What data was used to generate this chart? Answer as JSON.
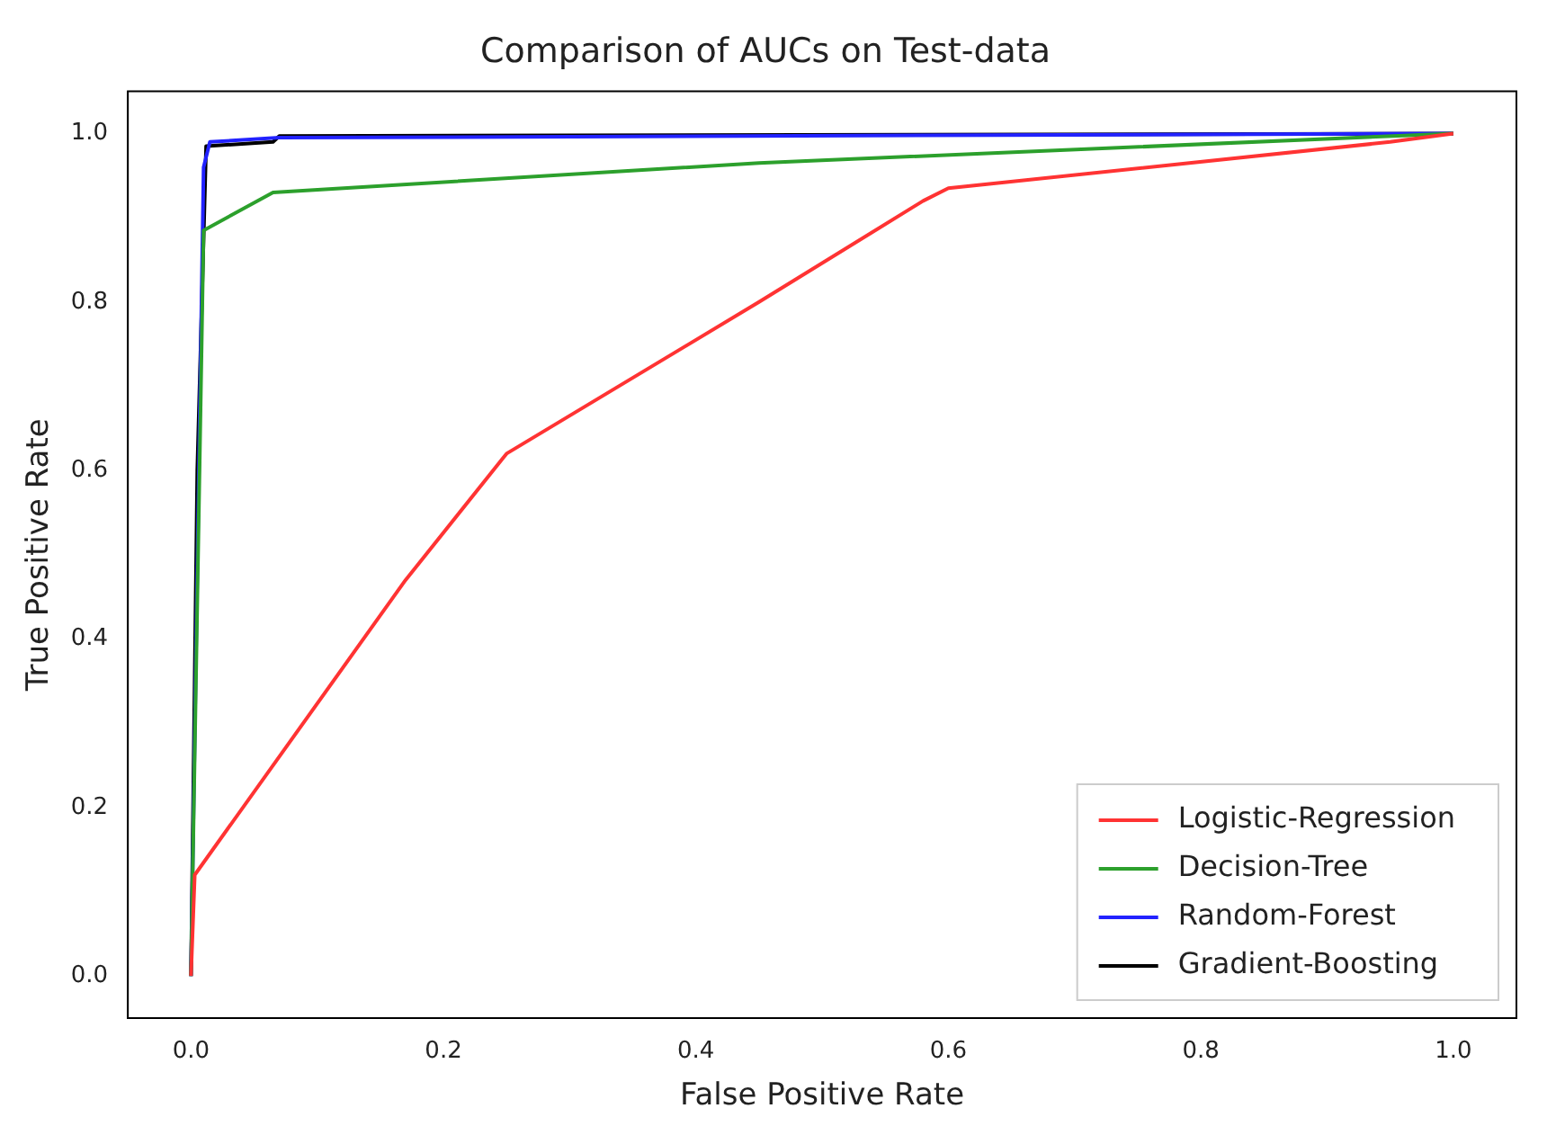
{
  "chart_data": {
    "type": "line",
    "title": "Comparison of AUCs on Test-data",
    "xlabel": "False Positive Rate",
    "ylabel": "True Positive Rate",
    "xlim": [
      -0.05,
      1.05
    ],
    "ylim": [
      -0.05,
      1.05
    ],
    "xticks": [
      {
        "value": 0,
        "label": "0.0"
      },
      {
        "value": 0.2,
        "label": "0.2"
      },
      {
        "value": 0.4,
        "label": "0.4"
      },
      {
        "value": 0.6,
        "label": "0.6"
      },
      {
        "value": 0.8,
        "label": "0.8"
      },
      {
        "value": 1,
        "label": "1.0"
      }
    ],
    "yticks": [
      {
        "value": 0,
        "label": "0.0"
      },
      {
        "value": 0.2,
        "label": "0.2"
      },
      {
        "value": 0.4,
        "label": "0.4"
      },
      {
        "value": 0.6,
        "label": "0.6"
      },
      {
        "value": 0.8,
        "label": "0.8"
      },
      {
        "value": 1,
        "label": "1.0"
      }
    ],
    "grid": false,
    "legend": "bottom right",
    "marker": "none",
    "line_style": "solid",
    "series": [
      {
        "name": "Logistic-Regression",
        "color": "#ff3333",
        "x": [
          0,
          0.003,
          0.17,
          0.25,
          0.45,
          0.58,
          0.6,
          0.95,
          1
        ],
        "values": [
          0,
          0.12,
          0.47,
          0.62,
          0.8,
          0.92,
          0.935,
          0.99,
          1
        ]
      },
      {
        "name": "Decision-Tree",
        "color": "#2ca02c",
        "x": [
          0,
          0.01,
          0.065,
          0.45,
          1
        ],
        "values": [
          0,
          0.885,
          0.93,
          0.965,
          1
        ]
      },
      {
        "name": "Random-Forest",
        "color": "#2222ff",
        "x": [
          0,
          0.01,
          0.015,
          0.07,
          1
        ],
        "values": [
          0,
          0.96,
          0.99,
          0.995,
          1
        ]
      },
      {
        "name": "Gradient-Boosting",
        "color": "#000000",
        "x": [
          0,
          0.005,
          0.012,
          0.065,
          0.07,
          1
        ],
        "values": [
          0,
          0.6,
          0.985,
          0.99,
          0.997,
          1
        ]
      }
    ]
  }
}
